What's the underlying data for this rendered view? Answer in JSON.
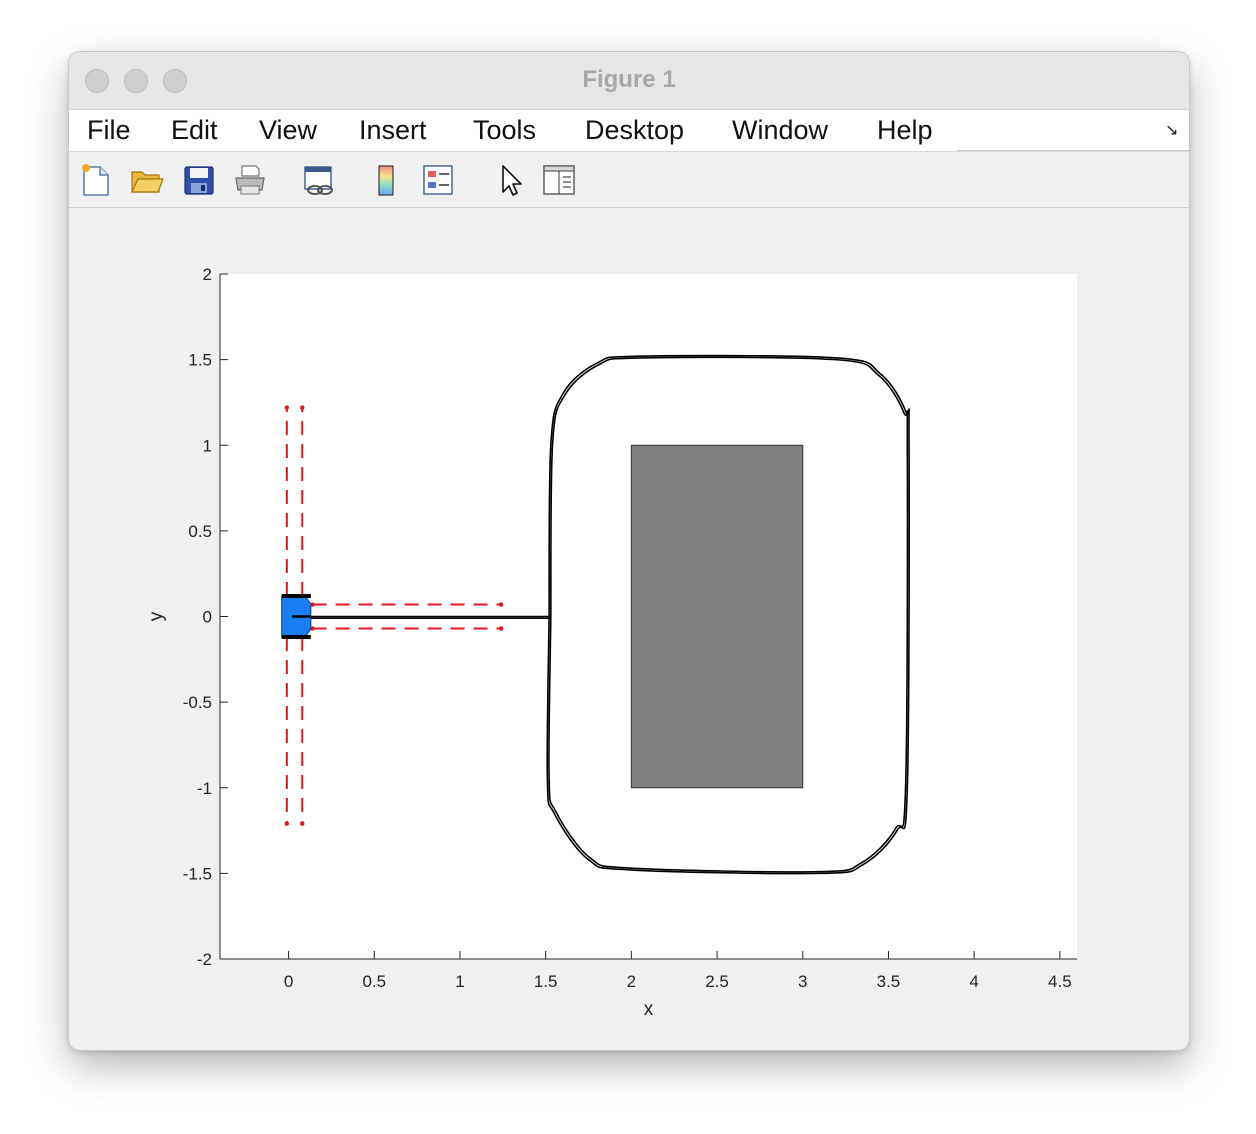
{
  "window": {
    "title": "Figure 1"
  },
  "menubar": {
    "items": [
      {
        "label": "File"
      },
      {
        "label": "Edit"
      },
      {
        "label": "View"
      },
      {
        "label": "Insert"
      },
      {
        "label": "Tools"
      },
      {
        "label": "Desktop"
      },
      {
        "label": "Window"
      },
      {
        "label": "Help"
      }
    ],
    "dock_icon": "dock-arrow-icon"
  },
  "toolbar": {
    "tools": [
      {
        "name": "new-figure-icon"
      },
      {
        "name": "open-file-icon"
      },
      {
        "name": "save-icon"
      },
      {
        "name": "print-icon"
      },
      {
        "name": "link-plot-icon"
      },
      {
        "name": "insert-colorbar-icon"
      },
      {
        "name": "insert-legend-icon"
      },
      {
        "name": "edit-plot-icon"
      },
      {
        "name": "property-inspector-icon"
      }
    ]
  },
  "chart_data": {
    "type": "line",
    "title": "",
    "xlabel": "x",
    "ylabel": "y",
    "xlim": [
      -0.4,
      4.6
    ],
    "ylim": [
      -2,
      2
    ],
    "xticks": [
      0,
      0.5,
      1,
      1.5,
      2,
      2.5,
      3,
      3.5,
      4,
      4.5
    ],
    "yticks": [
      -2,
      -1.5,
      -1,
      -0.5,
      0,
      0.5,
      1,
      1.5,
      2
    ],
    "xtick_labels": [
      "0",
      "0.5",
      "1",
      "1.5",
      "2",
      "2.5",
      "3",
      "3.5",
      "4",
      "4.5"
    ],
    "ytick_labels": [
      "-2",
      "-1.5",
      "-1",
      "-0.5",
      "0",
      "0.5",
      "1",
      "1.5",
      "2"
    ],
    "obstacle": {
      "x": [
        2,
        3
      ],
      "y": [
        -1,
        1
      ],
      "color": "#808080"
    },
    "path_color": "#000000",
    "robot": {
      "x": 0.03,
      "y": 0,
      "half_width": 0.12,
      "color": "#1a7ef0"
    },
    "sensor_color": "#e8141c",
    "sensor_beams": [
      {
        "x": [
          -0.01,
          -0.01
        ],
        "y": [
          0.12,
          1.22
        ]
      },
      {
        "x": [
          0.08,
          0.08
        ],
        "y": [
          0.12,
          1.22
        ]
      },
      {
        "x": [
          -0.01,
          -0.01
        ],
        "y": [
          -0.12,
          -1.21
        ]
      },
      {
        "x": [
          0.08,
          0.08
        ],
        "y": [
          -0.12,
          -1.21
        ]
      },
      {
        "x": [
          0.14,
          1.24
        ],
        "y": [
          0.07,
          0.07
        ]
      },
      {
        "x": [
          0.14,
          1.24
        ],
        "y": [
          -0.07,
          -0.07
        ]
      }
    ],
    "path_loops": [
      {
        "approach": [
          [
            0.0,
            0.0
          ],
          [
            1.52,
            0.0
          ]
        ],
        "ring": [
          [
            1.52,
            0.0
          ],
          [
            1.53,
            1.0
          ],
          [
            1.6,
            1.3
          ],
          [
            1.8,
            1.48
          ],
          [
            2.05,
            1.52
          ],
          [
            3.2,
            1.51
          ],
          [
            3.45,
            1.42
          ],
          [
            3.6,
            1.2
          ],
          [
            3.62,
            1.0
          ],
          [
            3.61,
            -1.0
          ],
          [
            3.55,
            -1.25
          ],
          [
            3.35,
            -1.45
          ],
          [
            3.1,
            -1.5
          ],
          [
            2.0,
            -1.48
          ],
          [
            1.75,
            -1.42
          ],
          [
            1.55,
            -1.15
          ],
          [
            1.51,
            -0.95
          ],
          [
            1.52,
            0.0
          ]
        ]
      },
      {
        "approach": [
          [
            0.0,
            -0.01
          ],
          [
            1.53,
            -0.01
          ]
        ],
        "ring": [
          [
            1.53,
            -0.01
          ],
          [
            1.54,
            1.0
          ],
          [
            1.61,
            1.29
          ],
          [
            1.81,
            1.47
          ],
          [
            2.06,
            1.51
          ],
          [
            3.19,
            1.5
          ],
          [
            3.44,
            1.41
          ],
          [
            3.59,
            1.19
          ],
          [
            3.61,
            0.99
          ],
          [
            3.6,
            -0.99
          ],
          [
            3.54,
            -1.24
          ],
          [
            3.34,
            -1.44
          ],
          [
            3.09,
            -1.49
          ],
          [
            2.01,
            -1.47
          ],
          [
            1.76,
            -1.41
          ],
          [
            1.56,
            -1.14
          ],
          [
            1.52,
            -0.94
          ],
          [
            1.53,
            -0.01
          ]
        ]
      }
    ]
  }
}
